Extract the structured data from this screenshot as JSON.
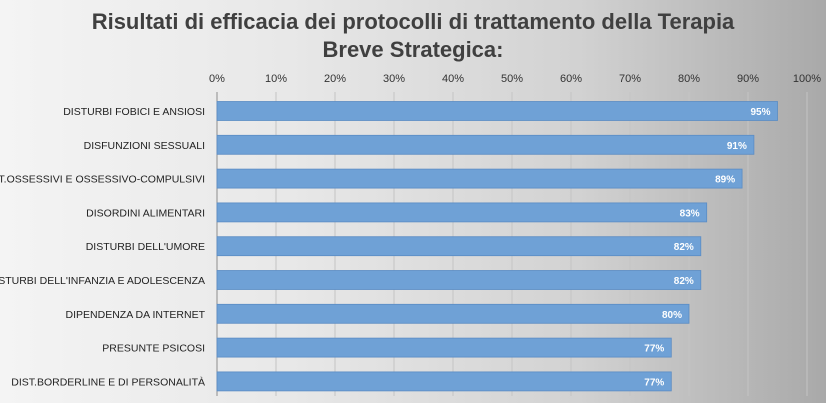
{
  "chart_data": {
    "type": "bar",
    "orientation": "horizontal",
    "title_line1": "Risultati di efficacia dei protocolli di trattamento della Terapia",
    "title_line2": "Breve Strategica:",
    "categories": [
      "DISTURBI FOBICI E ANSIOSI",
      "DISFUNZIONI SESSUALI",
      "DIST.OSSESSIVI E OSSESSIVO-COMPULSIVI",
      "DISORDINI ALIMENTARI",
      "DISTURBI DELL'UMORE",
      "DISTURBI DELL'INFANZIA E ADOLESCENZA",
      "DIPENDENZA DA INTERNET",
      "PRESUNTE PSICOSI",
      "DIST.BORDERLINE E DI PERSONALITÀ"
    ],
    "values": [
      95,
      91,
      89,
      83,
      82,
      82,
      80,
      77,
      77
    ],
    "data_labels": [
      "95%",
      "91%",
      "89%",
      "83%",
      "82%",
      "82%",
      "80%",
      "77%",
      "77%"
    ],
    "xlim": [
      0,
      100
    ],
    "x_ticks": [
      "0%",
      "10%",
      "20%",
      "30%",
      "40%",
      "50%",
      "60%",
      "70%",
      "80%",
      "90%",
      "100%"
    ],
    "x_axis_position": "top",
    "grid": true,
    "legend": "none",
    "bar_color": "#6fa1d6"
  }
}
